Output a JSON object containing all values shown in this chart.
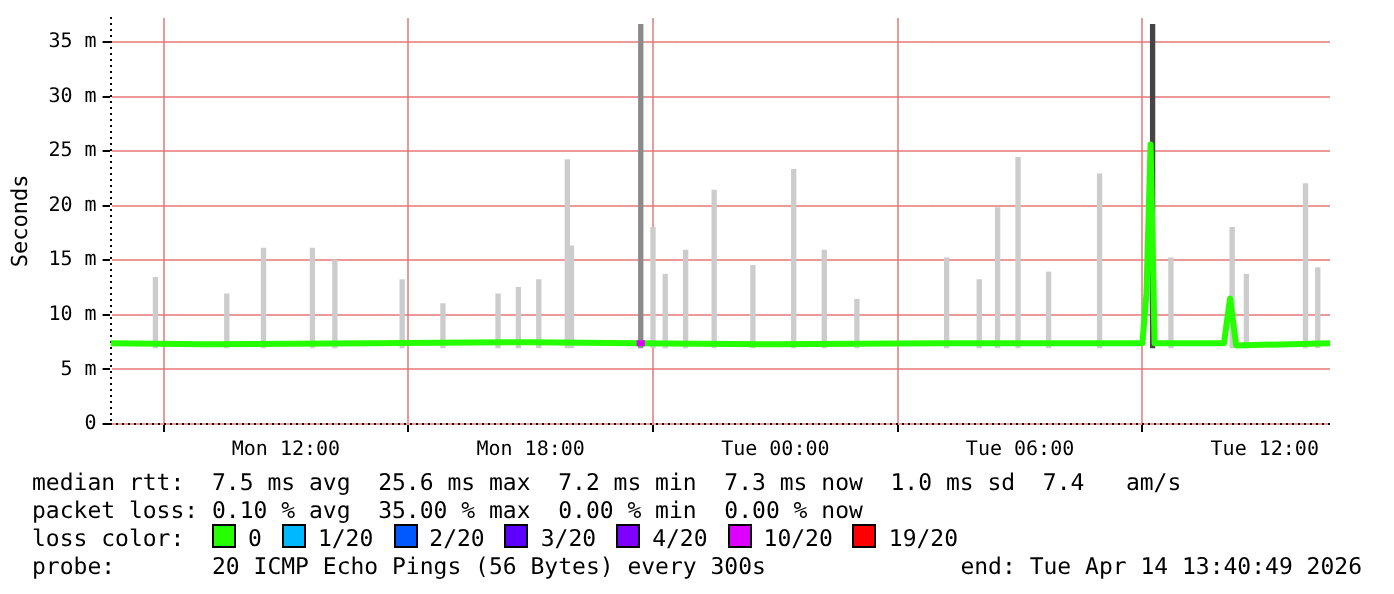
{
  "chart_data": {
    "type": "line",
    "ylabel": "Seconds",
    "xlim": [
      "2026-04-13T07:42",
      "2026-04-14T13:36"
    ],
    "xticks": [
      {
        "value": "2026-04-13T12:00",
        "label": "Mon 12:00"
      },
      {
        "value": "2026-04-13T18:00",
        "label": "Mon 18:00"
      },
      {
        "value": "2026-04-14T00:00",
        "label": "Tue 00:00"
      },
      {
        "value": "2026-04-14T06:00",
        "label": "Tue 06:00"
      },
      {
        "value": "2026-04-14T12:00",
        "label": "Tue 12:00"
      }
    ],
    "ylim": [
      0,
      37.2
    ],
    "yticks": [
      0,
      {
        "value": 5,
        "label": "5 m"
      },
      {
        "value": 10,
        "label": "10 m"
      },
      {
        "value": 15,
        "label": "15 m"
      },
      {
        "value": 20,
        "label": "20 m"
      },
      {
        "value": 25,
        "label": "25 m"
      },
      {
        "value": 30,
        "label": "30 m"
      },
      {
        "value": 35,
        "label": "35 m"
      }
    ],
    "grid": true,
    "legend": "bottom",
    "legend_title": "loss color:",
    "marker": "none",
    "line_style": "solid",
    "series": [
      {
        "type": "bar",
        "x": [
          "2026-04-13T08:48",
          "2026-04-13T10:33",
          "2026-04-13T11:27",
          "2026-04-13T12:39",
          "2026-04-13T13:12",
          "2026-04-13T14:51",
          "2026-04-13T15:51",
          "2026-04-13T17:12",
          "2026-04-13T17:42",
          "2026-04-13T18:12",
          "2026-04-13T18:54",
          "2026-04-13T19:00",
          "2026-04-13T20:42",
          "2026-04-13T21:00",
          "2026-04-13T21:18",
          "2026-04-13T21:48",
          "2026-04-13T22:30",
          "2026-04-13T23:27",
          "2026-04-14T00:27",
          "2026-04-14T01:12",
          "2026-04-14T02:00",
          "2026-04-14T04:12",
          "2026-04-14T05:00",
          "2026-04-14T05:27",
          "2026-04-14T05:57",
          "2026-04-14T06:42",
          "2026-04-14T07:57",
          "2026-04-14T09:15",
          "2026-04-14T09:42",
          "2026-04-14T11:12",
          "2026-04-14T11:33",
          "2026-04-14T13:00",
          "2026-04-14T13:18"
        ],
        "base": [
          7,
          7,
          7,
          7,
          7,
          7,
          7,
          7,
          7,
          7,
          7,
          7,
          7,
          7,
          7,
          7,
          7,
          7,
          7,
          7,
          7,
          7,
          7,
          7,
          7,
          7,
          7,
          7,
          7,
          7,
          7,
          7,
          7
        ],
        "values": [
          6.4,
          4.9,
          9.1,
          9.1,
          8.0,
          6.2,
          4.0,
          4.9,
          5.5,
          6.2,
          17.2,
          9.3,
          29.6,
          11.0,
          6.7,
          8.9,
          14.4,
          7.5,
          16.3,
          8.9,
          4.4,
          8.2,
          6.2,
          12.8,
          17.4,
          6.9,
          15.9,
          29.6,
          8.2,
          11.0,
          6.7,
          15.0,
          7.3
        ],
        "colors": [
          "#cccccc",
          "#cccccc",
          "#cccccc",
          "#cccccc",
          "#cccccc",
          "#cccccc",
          "#cccccc",
          "#cccccc",
          "#cccccc",
          "#cccccc",
          "#cccccc",
          "#cccccc",
          "#8a8a8a",
          "#cccccc",
          "#cccccc",
          "#cccccc",
          "#cccccc",
          "#cccccc",
          "#cccccc",
          "#cccccc",
          "#cccccc",
          "#cccccc",
          "#cccccc",
          "#cccccc",
          "#cccccc",
          "#cccccc",
          "#cccccc",
          "#444444",
          "#cccccc",
          "#cccccc",
          "#cccccc",
          "#cccccc",
          "#cccccc"
        ]
      },
      {
        "name": "0",
        "color": "#26ff00",
        "x": [
          "2026-04-13T07:42",
          "2026-04-13T10:00",
          "2026-04-13T14:00",
          "2026-04-13T18:00",
          "2026-04-13T20:36",
          "2026-04-14T00:00",
          "2026-04-14T04:00",
          "2026-04-14T09:00",
          "2026-04-14T09:06",
          "2026-04-14T09:12",
          "2026-04-14T09:18",
          "2026-04-14T11:00",
          "2026-04-14T11:09",
          "2026-04-14T11:18",
          "2026-04-14T13:36"
        ],
        "values": [
          7.4,
          7.3,
          7.4,
          7.5,
          7.4,
          7.3,
          7.4,
          7.4,
          12.0,
          25.6,
          7.4,
          7.4,
          11.5,
          7.2,
          7.4
        ]
      },
      {
        "name": "1/20",
        "color": "#00b8ff"
      },
      {
        "name": "2/20",
        "color": "#0059ff"
      },
      {
        "name": "3/20",
        "color": "#5e00ff"
      },
      {
        "name": "4/20",
        "color": "#7e00ff"
      },
      {
        "name": "10/20",
        "color": "#dd00ff",
        "x": [
          "2026-04-13T20:36",
          "2026-04-13T20:48"
        ],
        "values": [
          7.4,
          7.4
        ]
      },
      {
        "name": "19/20",
        "color": "#ff0000"
      }
    ],
    "annotations": [
      "median rtt:  7.5 ms avg  25.6 ms max  7.2 ms min  7.3 ms now  1.0 ms sd  7.4   am/s",
      "packet loss: 0.10 % avg  35.00 % max  0.00 % min  0.00 % now",
      "probe:       20 ICMP Echo Pings (56 Bytes) every 300s",
      "end: Tue Apr 14 13:40:49 2026"
    ]
  }
}
